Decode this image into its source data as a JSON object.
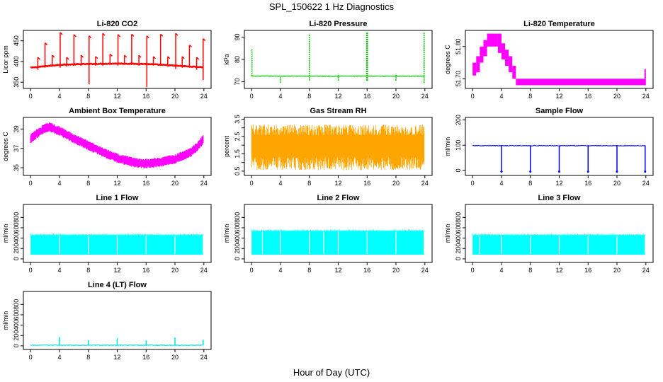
{
  "figure": {
    "title": "SPL_150622  1 Hz Diagnostics",
    "xlabel": "Hour of Day (UTC)"
  },
  "chart_data": [
    {
      "type": "line",
      "title": "Li-820 CO2",
      "ylabel": "Licor ppm",
      "color": "#ff0000",
      "xlim": [
        -1,
        25
      ],
      "ylim": [
        335,
        475
      ],
      "yticks": [
        350,
        400,
        450
      ],
      "xticks": [
        0,
        4,
        8,
        12,
        16,
        20,
        24
      ],
      "baseline": {
        "hours": [
          0,
          4,
          8,
          12,
          16,
          20,
          24
        ],
        "values": [
          385,
          392,
          394,
          395,
          394,
          390,
          386
        ]
      },
      "spikes": [
        {
          "x": 1.0,
          "top": 410,
          "bottom": 380
        },
        {
          "x": 2.0,
          "top": 445,
          "bottom": 385
        },
        {
          "x": 3.0,
          "top": 415,
          "bottom": 388
        },
        {
          "x": 4.1,
          "top": 470,
          "bottom": 385
        },
        {
          "x": 5.0,
          "top": 410,
          "bottom": 388
        },
        {
          "x": 6.0,
          "top": 465,
          "bottom": 390
        },
        {
          "x": 7.0,
          "top": 415,
          "bottom": 390
        },
        {
          "x": 8.1,
          "top": 462,
          "bottom": 345
        },
        {
          "x": 9.0,
          "top": 412,
          "bottom": 390
        },
        {
          "x": 10.0,
          "top": 468,
          "bottom": 390
        },
        {
          "x": 11.0,
          "top": 418,
          "bottom": 392
        },
        {
          "x": 12.1,
          "top": 465,
          "bottom": 390
        },
        {
          "x": 13.0,
          "top": 415,
          "bottom": 392
        },
        {
          "x": 14.0,
          "top": 466,
          "bottom": 392
        },
        {
          "x": 15.0,
          "top": 415,
          "bottom": 390
        },
        {
          "x": 16.1,
          "top": 462,
          "bottom": 338
        },
        {
          "x": 17.0,
          "top": 412,
          "bottom": 390
        },
        {
          "x": 18.0,
          "top": 466,
          "bottom": 390
        },
        {
          "x": 19.0,
          "top": 412,
          "bottom": 388
        },
        {
          "x": 20.1,
          "top": 468,
          "bottom": 382
        },
        {
          "x": 21.0,
          "top": 412,
          "bottom": 385
        },
        {
          "x": 22.0,
          "top": 440,
          "bottom": 385
        },
        {
          "x": 23.0,
          "top": 410,
          "bottom": 380
        },
        {
          "x": 23.9,
          "top": 455,
          "bottom": 355
        }
      ]
    },
    {
      "type": "line",
      "title": "Li-820 Pressure",
      "ylabel": "kPa",
      "color": "#00cc00",
      "xlim": [
        -1,
        25
      ],
      "ylim": [
        67,
        93
      ],
      "yticks": [
        70,
        80,
        90
      ],
      "xticks": [
        0,
        4,
        8,
        12,
        16,
        20,
        24
      ],
      "baseline": {
        "hours": [
          0,
          24
        ],
        "values": [
          72.5,
          72.5
        ]
      },
      "spikes": [
        {
          "x": 0.05,
          "top": 84.5,
          "bottom": 72.5
        },
        {
          "x": 4.0,
          "top": 72.5,
          "bottom": 69.5
        },
        {
          "x": 8.0,
          "top": 91.5,
          "bottom": 70.5
        },
        {
          "x": 12.0,
          "top": 73.5,
          "bottom": 70.5
        },
        {
          "x": 15.95,
          "top": 92,
          "bottom": 70.5
        },
        {
          "x": 16.05,
          "top": 92,
          "bottom": 70.5
        },
        {
          "x": 20.0,
          "top": 73.5,
          "bottom": 70.5
        },
        {
          "x": 23.9,
          "top": 92,
          "bottom": 69.5
        }
      ]
    },
    {
      "type": "step",
      "title": "Li-820 Temperature",
      "ylabel": "degrees C",
      "color": "#ff00ff",
      "xlim": [
        -1,
        25
      ],
      "ylim": [
        51.67,
        51.85
      ],
      "yticks": [
        51.7,
        51.8
      ],
      "ytick_labels": [
        "51.70",
        "51.80"
      ],
      "xticks": [
        0,
        4,
        8,
        12,
        16,
        20,
        24
      ],
      "bands": [
        {
          "x0": 0.0,
          "x1": 0.5,
          "lo": 51.71,
          "hi": 51.75
        },
        {
          "x0": 0.5,
          "x1": 1.0,
          "lo": 51.72,
          "hi": 51.77
        },
        {
          "x0": 1.0,
          "x1": 1.5,
          "lo": 51.75,
          "hi": 51.8
        },
        {
          "x0": 1.5,
          "x1": 2.0,
          "lo": 51.77,
          "hi": 51.82
        },
        {
          "x0": 2.0,
          "x1": 3.5,
          "lo": 51.8,
          "hi": 51.84
        },
        {
          "x0": 3.5,
          "x1": 4.0,
          "lo": 51.78,
          "hi": 51.84
        },
        {
          "x0": 4.0,
          "x1": 4.5,
          "lo": 51.76,
          "hi": 51.81
        },
        {
          "x0": 4.5,
          "x1": 5.0,
          "lo": 51.74,
          "hi": 51.79
        },
        {
          "x0": 5.0,
          "x1": 5.5,
          "lo": 51.72,
          "hi": 51.77
        },
        {
          "x0": 5.5,
          "x1": 6.0,
          "lo": 51.7,
          "hi": 51.74
        },
        {
          "x0": 6.0,
          "x1": 23.9,
          "lo": 51.68,
          "hi": 51.7
        }
      ],
      "end_spike": {
        "x": 23.9,
        "top": 51.73,
        "bottom": 51.68
      }
    },
    {
      "type": "line",
      "title": "Ambient Box Temperature",
      "ylabel": "degrees C",
      "color": "#ff00ff",
      "xlim": [
        -1,
        25
      ],
      "ylim": [
        34.2,
        40.2
      ],
      "yticks": [
        35,
        37,
        39
      ],
      "xticks": [
        0,
        4,
        8,
        12,
        16,
        20,
        24
      ],
      "curve": {
        "hours": [
          0,
          1,
          2,
          2.5,
          3,
          4,
          6,
          8,
          10,
          12,
          14,
          15.5,
          17,
          18,
          20,
          22,
          23,
          23.9
        ],
        "values": [
          38.0,
          38.6,
          39.1,
          39.2,
          39.1,
          38.8,
          38.0,
          37.3,
          36.6,
          36.0,
          35.6,
          35.4,
          35.5,
          35.6,
          35.9,
          36.5,
          37.1,
          37.9
        ]
      },
      "band_halfwidth": 0.5
    },
    {
      "type": "band",
      "title": "Gas Stream RH",
      "ylabel": "percent",
      "color": "#ffa500",
      "xlim": [
        -1,
        25
      ],
      "ylim": [
        0.25,
        3.6
      ],
      "yticks": [
        0.5,
        1.5,
        2.5,
        3.5
      ],
      "yticks_minor": [
        1.0,
        2.0,
        3.0
      ],
      "ytick_labels": [
        "0.5",
        "1.5",
        "2.5",
        "3.5"
      ],
      "xticks": [
        0,
        4,
        8,
        12,
        16,
        20,
        24
      ],
      "range": [
        0.55,
        3.2
      ]
    },
    {
      "type": "line",
      "title": "Sample Flow",
      "ylabel": "ml/min",
      "color": "#0000ff",
      "xlim": [
        -1,
        25
      ],
      "ylim": [
        -20,
        210
      ],
      "yticks": [
        0,
        100,
        200
      ],
      "xticks": [
        0,
        4,
        8,
        12,
        16,
        20,
        24
      ],
      "baseline": {
        "hours": [
          0,
          24
        ],
        "values": [
          98,
          98
        ]
      },
      "dips": [
        {
          "x": 4.0,
          "bottom": -5
        },
        {
          "x": 8.0,
          "bottom": -5
        },
        {
          "x": 12.0,
          "bottom": -5
        },
        {
          "x": 16.0,
          "bottom": -5
        },
        {
          "x": 20.0,
          "bottom": -5
        },
        {
          "x": 23.9,
          "bottom": -5
        }
      ]
    },
    {
      "type": "band",
      "title": "Line 1 Flow",
      "ylabel": "ml/min",
      "color": "#00ffff",
      "xlim": [
        -1,
        25
      ],
      "ylim": [
        -70,
        1050
      ],
      "yticks": [
        0,
        200,
        400,
        600,
        800
      ],
      "xticks": [
        0,
        4,
        8,
        12,
        16,
        20,
        24
      ],
      "range": [
        80,
        460
      ],
      "gaps": [
        4.0,
        8.0,
        12.0,
        16.0,
        20.0,
        23.9
      ]
    },
    {
      "type": "band",
      "title": "Line 2 Flow",
      "ylabel": "ml/min",
      "color": "#00ffff",
      "xlim": [
        -1,
        25
      ],
      "ylim": [
        -70,
        1050
      ],
      "yticks": [
        0,
        200,
        400,
        600,
        800
      ],
      "xticks": [
        0,
        4,
        8,
        12,
        16,
        20,
        24
      ],
      "range": [
        80,
        540
      ],
      "gaps": [
        1.5,
        4.0,
        8.0,
        10.0,
        12.0,
        16.0,
        20.0,
        23.9
      ]
    },
    {
      "type": "band",
      "title": "Line 3 Flow",
      "ylabel": "ml/min",
      "color": "#00ffff",
      "xlim": [
        -1,
        25
      ],
      "ylim": [
        -70,
        1050
      ],
      "yticks": [
        0,
        200,
        400,
        600,
        800
      ],
      "xticks": [
        0,
        4,
        8,
        12,
        16,
        20,
        24
      ],
      "range": [
        80,
        460
      ],
      "gaps": [
        1.0,
        4.0,
        8.0,
        12.0,
        16.0,
        20.0,
        23.9
      ]
    },
    {
      "type": "line",
      "title": "Line 4 (LT) Flow",
      "ylabel": "ml/min",
      "color": "#00e5e5",
      "xlim": [
        -1,
        25
      ],
      "ylim": [
        -70,
        1050
      ],
      "yticks": [
        0,
        200,
        400,
        600,
        800
      ],
      "xticks": [
        0,
        4,
        8,
        12,
        16,
        20,
        24
      ],
      "baseline": {
        "hours": [
          0,
          24
        ],
        "values": [
          12,
          12
        ]
      },
      "spikes": [
        {
          "x": 4.0,
          "top": 170,
          "bottom": 12
        },
        {
          "x": 8.0,
          "top": 110,
          "bottom": 12
        },
        {
          "x": 12.0,
          "top": 150,
          "bottom": 12
        },
        {
          "x": 16.0,
          "top": 110,
          "bottom": 12
        },
        {
          "x": 20.0,
          "top": 160,
          "bottom": 12
        },
        {
          "x": 23.9,
          "top": 120,
          "bottom": 12
        }
      ]
    }
  ]
}
